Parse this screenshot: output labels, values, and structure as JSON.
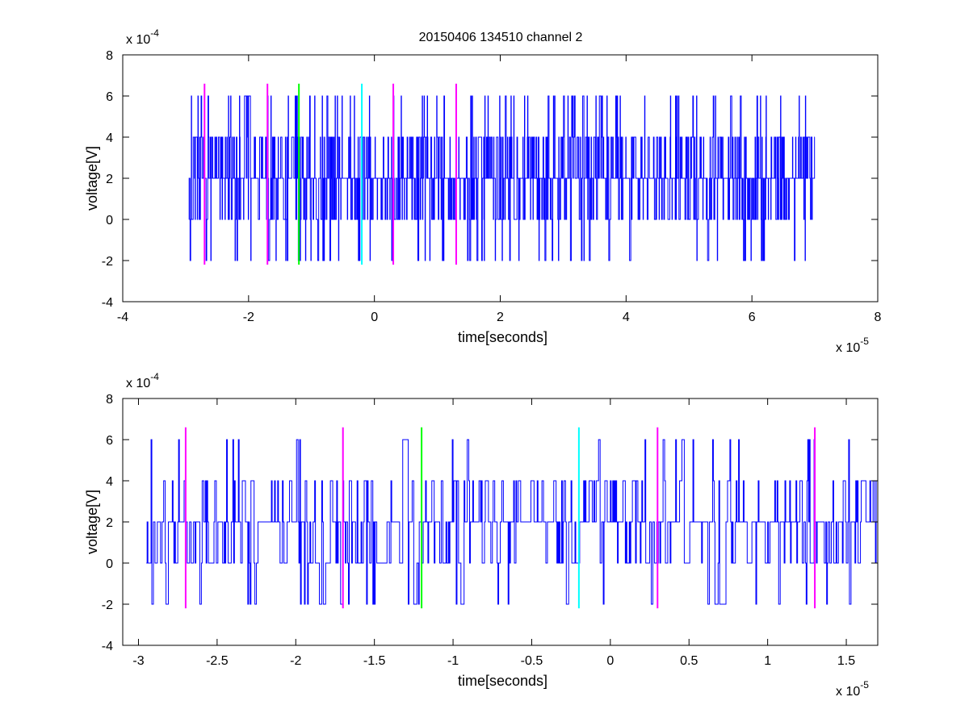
{
  "figure_title": "20150406 134510 channel 2",
  "chart_data": [
    {
      "type": "line",
      "title": "20150406 134510 channel 2",
      "xlabel": "time[seconds]",
      "ylabel": "voltage[V]",
      "xlim": [
        -4e-05,
        8e-05
      ],
      "ylim": [
        -0.0004,
        0.0008
      ],
      "x_ticks": [
        -4,
        -2,
        0,
        2,
        4,
        6,
        8
      ],
      "x_tick_labels": [
        "-4",
        "-2",
        "0",
        "2",
        "4",
        "6",
        "8"
      ],
      "y_ticks": [
        -4,
        -2,
        0,
        2,
        4,
        6,
        8
      ],
      "y_tick_labels": [
        "-4",
        "-2",
        "0",
        "2",
        "4",
        "6",
        "8"
      ],
      "x_multiplier": "x 10",
      "x_exponent": "-5",
      "y_multiplier": "x 10",
      "y_exponent": "-4",
      "grid": false,
      "series": [
        {
          "color": "#0000ff",
          "x_range": [
            -2.95e-05,
            7e-05
          ],
          "levels": [
            -0.0002,
            0,
            0.0002,
            0.0004,
            0.0006
          ],
          "baseline": 0.0002
        }
      ],
      "markers": [
        {
          "x": -2.7e-05,
          "y_range": [
            -0.00022,
            0.00066
          ],
          "color": "#ff00ff"
        },
        {
          "x": -1.7e-05,
          "y_range": [
            -0.00022,
            0.00066
          ],
          "color": "#ff00ff"
        },
        {
          "x": -1.2e-05,
          "y_range": [
            -0.00022,
            0.00066
          ],
          "color": "#00ff00"
        },
        {
          "x": -2e-06,
          "y_range": [
            -0.00022,
            0.00066
          ],
          "color": "#00ffff"
        },
        {
          "x": 3e-06,
          "y_range": [
            -0.00022,
            0.00066
          ],
          "color": "#ff00ff"
        },
        {
          "x": 1.3e-05,
          "y_range": [
            -0.00022,
            0.00066
          ],
          "color": "#ff00ff"
        }
      ]
    },
    {
      "type": "line",
      "title": "",
      "xlabel": "time[seconds]",
      "ylabel": "voltage[V]",
      "xlim": [
        -3.1e-05,
        1.7e-05
      ],
      "ylim": [
        -0.0004,
        0.0008
      ],
      "x_ticks": [
        -3,
        -2.5,
        -2,
        -1.5,
        -1,
        -0.5,
        0,
        0.5,
        1,
        1.5
      ],
      "x_tick_labels": [
        "-3",
        "-2.5",
        "-2",
        "-1.5",
        "-1",
        "-0.5",
        "0",
        "0.5",
        "1",
        "1.5"
      ],
      "y_ticks": [
        -4,
        -2,
        0,
        2,
        4,
        6,
        8
      ],
      "y_tick_labels": [
        "-4",
        "-2",
        "0",
        "2",
        "4",
        "6",
        "8"
      ],
      "x_multiplier": "x 10",
      "x_exponent": "-5",
      "y_multiplier": "x 10",
      "y_exponent": "-4",
      "grid": false,
      "series": [
        {
          "color": "#0000ff",
          "x_range": [
            -2.95e-05,
            1.7e-05
          ],
          "levels": [
            -0.0002,
            0,
            0.0002,
            0.0004,
            0.0006
          ],
          "baseline": 0.0002
        }
      ],
      "markers": [
        {
          "x": -2.7e-05,
          "y_range": [
            -0.00022,
            0.00066
          ],
          "color": "#ff00ff"
        },
        {
          "x": -1.7e-05,
          "y_range": [
            -0.00022,
            0.00066
          ],
          "color": "#ff00ff"
        },
        {
          "x": -1.2e-05,
          "y_range": [
            -0.00022,
            0.00066
          ],
          "color": "#00ff00"
        },
        {
          "x": -2e-06,
          "y_range": [
            -0.00022,
            0.00066
          ],
          "color": "#00ffff"
        },
        {
          "x": 3e-06,
          "y_range": [
            -0.00022,
            0.00066
          ],
          "color": "#ff00ff"
        },
        {
          "x": 1.3e-05,
          "y_range": [
            -0.00022,
            0.00066
          ],
          "color": "#ff00ff"
        }
      ]
    }
  ]
}
